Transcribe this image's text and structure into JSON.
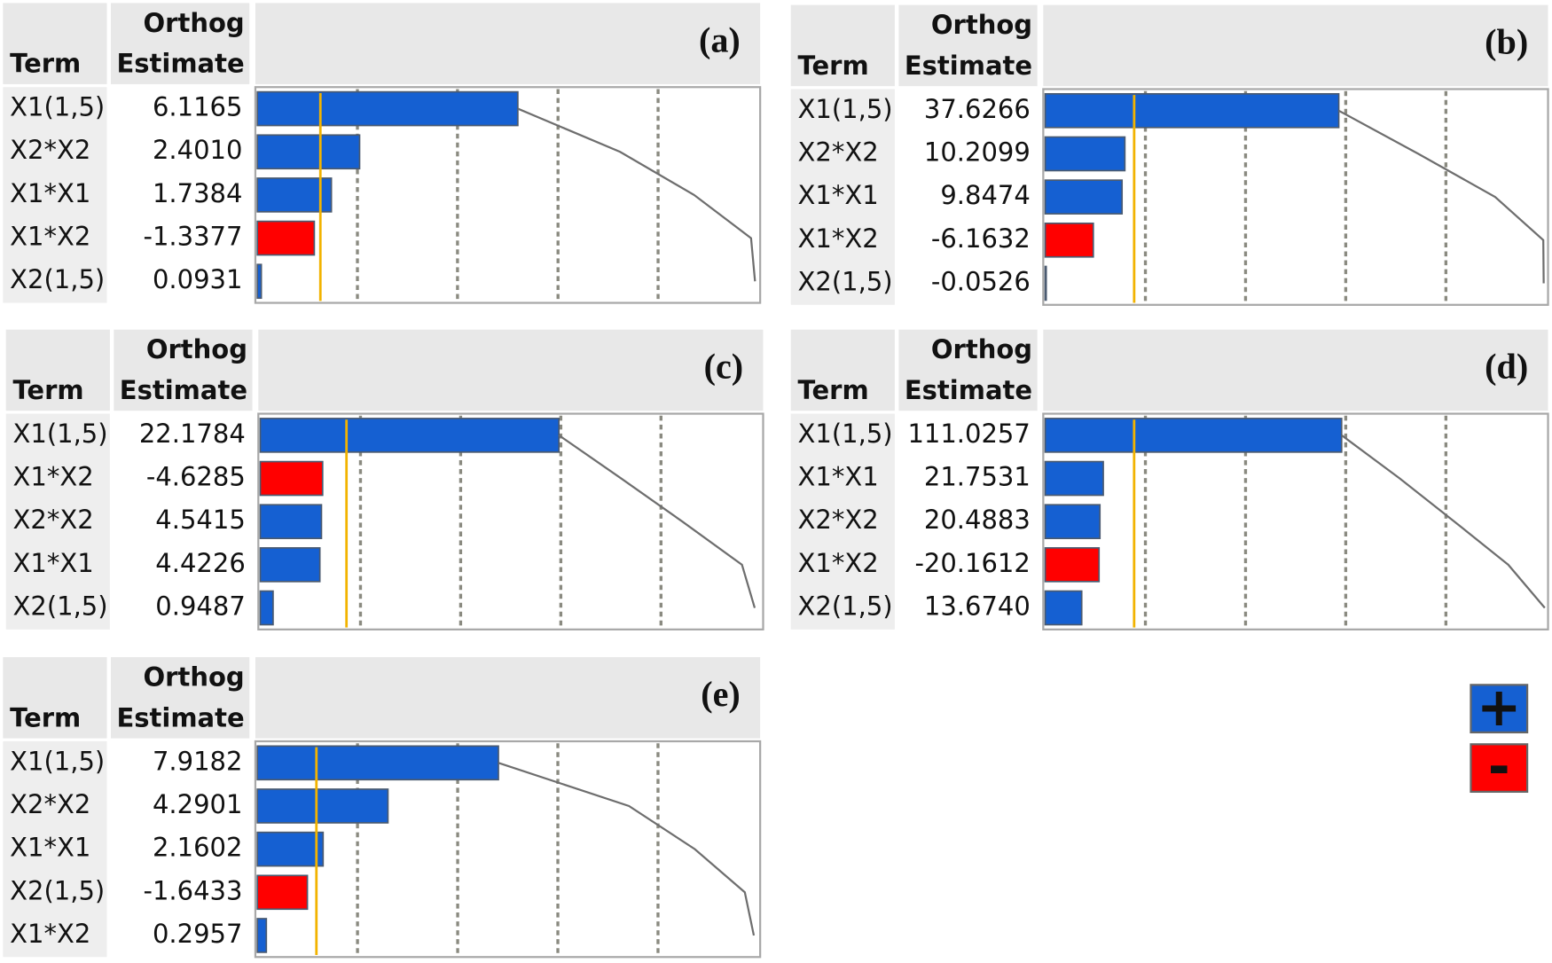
{
  "chart_data": [
    {
      "type": "bar",
      "label": "(a)",
      "term_header": "Term",
      "estimate_header": [
        "Orthog",
        "Estimate"
      ],
      "categories": [
        "X1(1,5)",
        "X2*X2",
        "X1*X1",
        "X1*X2",
        "X2(1,5)"
      ],
      "values": [
        6.1165,
        2.401,
        1.7384,
        -1.3377,
        0.0931
      ],
      "value_labels": [
        "6.1165",
        "2.4010",
        "1.7384",
        "-1.3377",
        "0.0931"
      ],
      "xlim": [
        0,
        11.76
      ],
      "xticks": [
        2.35,
        4.7,
        7.06,
        9.41
      ],
      "threshold": 1.48,
      "positive_color": "#1560d2",
      "negative_color": "#ff0000",
      "threshold_color": "#f2b300",
      "cumulative_color": "#6e6e6e"
    },
    {
      "type": "bar",
      "label": "(b)",
      "term_header": "Term",
      "estimate_header": [
        "Orthog",
        "Estimate"
      ],
      "categories": [
        "X1(1,5)",
        "X2*X2",
        "X1*X1",
        "X1*X2",
        "X2(1,5)"
      ],
      "values": [
        37.6266,
        10.2099,
        9.8474,
        -6.1632,
        -0.0526
      ],
      "value_labels": [
        "37.6266",
        "10.2099",
        "9.8474",
        "-6.1632",
        "-0.0526"
      ],
      "xlim": [
        0,
        64.2
      ],
      "xticks": [
        12.84,
        25.68,
        38.52,
        51.36
      ],
      "threshold": 11.4,
      "positive_color": "#1560d2",
      "negative_color": "#ff0000",
      "threshold_color": "#f2b300",
      "cumulative_color": "#6e6e6e"
    },
    {
      "type": "bar",
      "label": "(c)",
      "term_header": "Term",
      "estimate_header": [
        "Orthog",
        "Estimate"
      ],
      "categories": [
        "X1(1,5)",
        "X1*X2",
        "X2*X2",
        "X1*X1",
        "X2(1,5)"
      ],
      "values": [
        22.1784,
        -4.6285,
        4.5415,
        4.4226,
        0.9487
      ],
      "value_labels": [
        "22.1784",
        "-4.6285",
        "4.5415",
        "4.4226",
        "0.9487"
      ],
      "xlim": [
        0,
        37.2
      ],
      "xticks": [
        7.44,
        14.88,
        22.32,
        29.76
      ],
      "threshold": 6.4,
      "positive_color": "#1560d2",
      "negative_color": "#ff0000",
      "threshold_color": "#f2b300",
      "cumulative_color": "#6e6e6e"
    },
    {
      "type": "bar",
      "label": "(d)",
      "term_header": "Term",
      "estimate_header": [
        "Orthog",
        "Estimate"
      ],
      "categories": [
        "X1(1,5)",
        "X1*X1",
        "X2*X2",
        "X1*X2",
        "X2(1,5)"
      ],
      "values": [
        111.0257,
        21.7531,
        20.4883,
        -20.1612,
        13.674
      ],
      "value_labels": [
        "111.0257",
        "21.7531",
        "20.4883",
        "-20.1612",
        "13.6740"
      ],
      "xlim": [
        0,
        187.6
      ],
      "xticks": [
        37.52,
        75.04,
        112.56,
        150.08
      ],
      "threshold": 33.3,
      "positive_color": "#1560d2",
      "negative_color": "#ff0000",
      "threshold_color": "#f2b300",
      "cumulative_color": "#6e6e6e"
    },
    {
      "type": "bar",
      "label": "(e)",
      "term_header": "Term",
      "estimate_header": [
        "Orthog",
        "Estimate"
      ],
      "categories": [
        "X1(1,5)",
        "X2*X2",
        "X1*X1",
        "X2(1,5)",
        "X1*X2"
      ],
      "values": [
        7.9182,
        4.2901,
        2.1602,
        -1.6433,
        0.2957
      ],
      "value_labels": [
        "7.9182",
        "4.2901",
        "2.1602",
        "-1.6433",
        "0.2957"
      ],
      "xlim": [
        0,
        16.45
      ],
      "xticks": [
        3.29,
        6.58,
        9.87,
        13.16
      ],
      "threshold": 1.94,
      "positive_color": "#1560d2",
      "negative_color": "#ff0000",
      "threshold_color": "#f2b300",
      "cumulative_color": "#6e6e6e"
    }
  ],
  "legend": [
    {
      "name": "+",
      "color": "#1560d2"
    },
    {
      "name": "-",
      "color": "#ff0000"
    }
  ]
}
